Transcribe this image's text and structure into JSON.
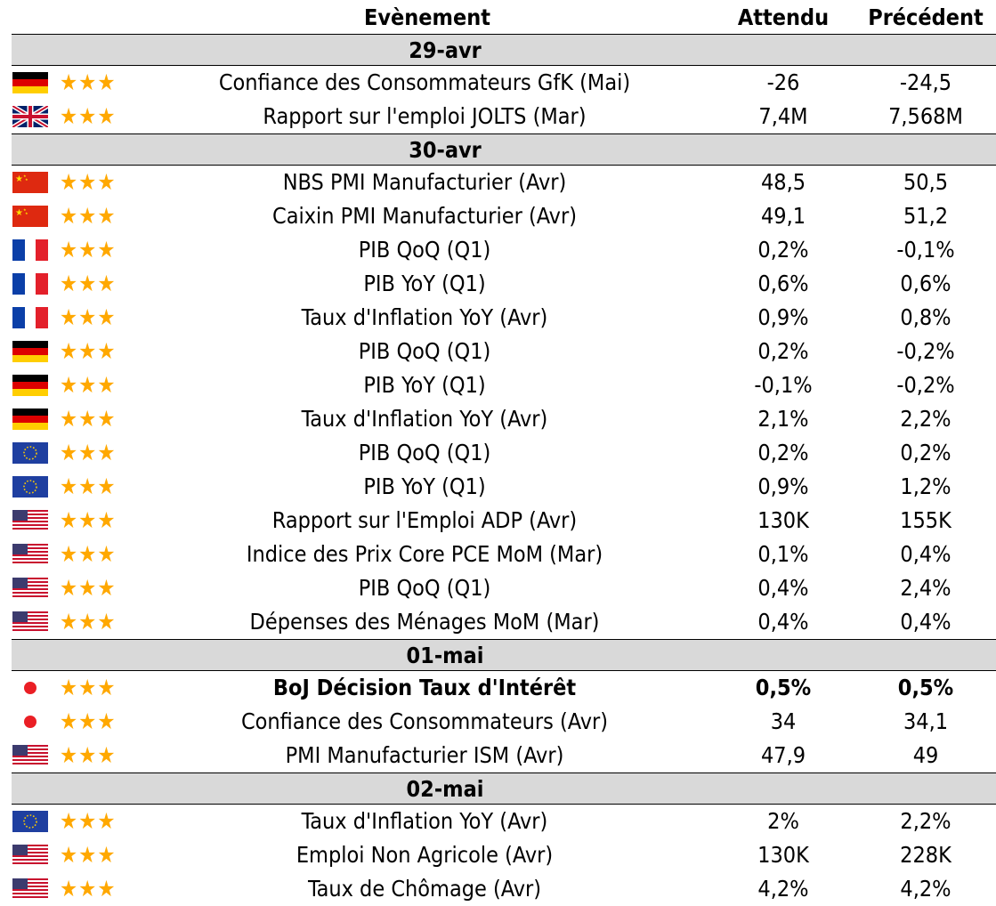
{
  "header": {
    "event": "Evènement",
    "expected": "Attendu",
    "previous": "Précédent"
  },
  "groups": [
    {
      "date": "29-avr",
      "rows": [
        {
          "country": "de",
          "stars": "★★★",
          "event": "Confiance des Consommateurs GfK (Mai)",
          "expected": "-26",
          "previous": "-24,5",
          "bold": false
        },
        {
          "country": "gb",
          "stars": "★★★",
          "event": "Rapport sur l'emploi JOLTS (Mar)",
          "expected": "7,4M",
          "previous": "7,568M",
          "bold": false
        }
      ]
    },
    {
      "date": "30-avr",
      "rows": [
        {
          "country": "cn",
          "stars": "★★★",
          "event": "NBS PMI Manufacturier (Avr)",
          "expected": "48,5",
          "previous": "50,5",
          "bold": false
        },
        {
          "country": "cn",
          "stars": "★★★",
          "event": "Caixin PMI Manufacturier (Avr)",
          "expected": "49,1",
          "previous": "51,2",
          "bold": false
        },
        {
          "country": "fr",
          "stars": "★★★",
          "event": "PIB QoQ (Q1)",
          "expected": "0,2%",
          "previous": "-0,1%",
          "bold": false
        },
        {
          "country": "fr",
          "stars": "★★★",
          "event": "PIB YoY (Q1)",
          "expected": "0,6%",
          "previous": "0,6%",
          "bold": false
        },
        {
          "country": "fr",
          "stars": "★★★",
          "event": "Taux d'Inflation YoY (Avr)",
          "expected": "0,9%",
          "previous": "0,8%",
          "bold": false
        },
        {
          "country": "de",
          "stars": "★★★",
          "event": "PIB QoQ (Q1)",
          "expected": "0,2%",
          "previous": "-0,2%",
          "bold": false
        },
        {
          "country": "de",
          "stars": "★★★",
          "event": "PIB YoY (Q1)",
          "expected": "-0,1%",
          "previous": "-0,2%",
          "bold": false
        },
        {
          "country": "de",
          "stars": "★★★",
          "event": "Taux d'Inflation YoY (Avr)",
          "expected": "2,1%",
          "previous": "2,2%",
          "bold": false
        },
        {
          "country": "eu",
          "stars": "★★★",
          "event": "PIB QoQ (Q1)",
          "expected": "0,2%",
          "previous": "0,2%",
          "bold": false
        },
        {
          "country": "eu",
          "stars": "★★★",
          "event": "PIB YoY (Q1)",
          "expected": "0,9%",
          "previous": "1,2%",
          "bold": false
        },
        {
          "country": "us",
          "stars": "★★★",
          "event": "Rapport sur l'Emploi ADP (Avr)",
          "expected": "130K",
          "previous": "155K",
          "bold": false
        },
        {
          "country": "us",
          "stars": "★★★",
          "event": "Indice des Prix Core PCE MoM (Mar)",
          "expected": "0,1%",
          "previous": "0,4%",
          "bold": false
        },
        {
          "country": "us",
          "stars": "★★★",
          "event": "PIB QoQ (Q1)",
          "expected": "0,4%",
          "previous": "2,4%",
          "bold": false
        },
        {
          "country": "us",
          "stars": "★★★",
          "event": "Dépenses des Ménages MoM (Mar)",
          "expected": "0,4%",
          "previous": "0,4%",
          "bold": false
        }
      ]
    },
    {
      "date": "01-mai",
      "rows": [
        {
          "country": "jp",
          "stars": "★★★",
          "event": "BoJ Décision Taux d'Intérêt",
          "expected": "0,5%",
          "previous": "0,5%",
          "bold": true
        },
        {
          "country": "jp",
          "stars": "★★★",
          "event": "Confiance des Consommateurs (Avr)",
          "expected": "34",
          "previous": "34,1",
          "bold": false
        },
        {
          "country": "us",
          "stars": "★★★",
          "event": "PMI Manufacturier ISM (Avr)",
          "expected": "47,9",
          "previous": "49",
          "bold": false
        }
      ]
    },
    {
      "date": "02-mai",
      "rows": [
        {
          "country": "eu",
          "stars": "★★★",
          "event": "Taux d'Inflation YoY (Avr)",
          "expected": "2%",
          "previous": "2,2%",
          "bold": false
        },
        {
          "country": "us",
          "stars": "★★★",
          "event": "Emploi Non Agricole (Avr)",
          "expected": "130K",
          "previous": "228K",
          "bold": false
        },
        {
          "country": "us",
          "stars": "★★★",
          "event": "Taux de Chômage (Avr)",
          "expected": "4,2%",
          "previous": "4,2%",
          "bold": false
        }
      ]
    }
  ]
}
